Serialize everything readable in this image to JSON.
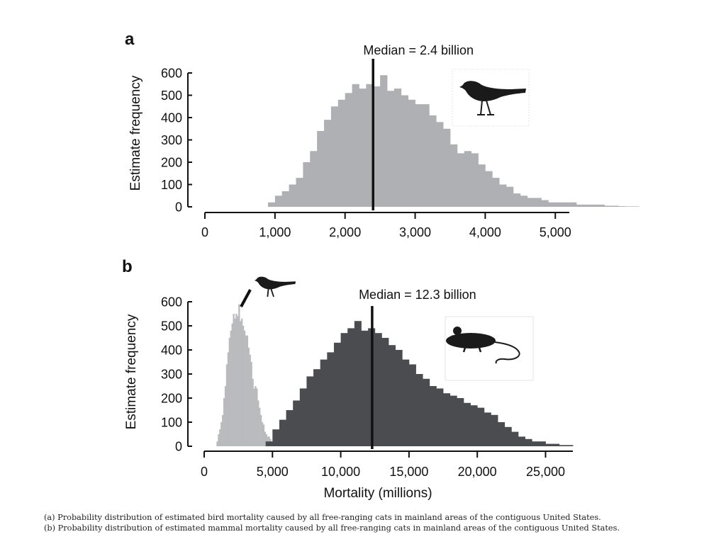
{
  "colors": {
    "bird_bars": "#aeb0b3",
    "bird_bars_b": "#b9bbbd",
    "mammal_bars": "#4a4c50",
    "median_line": "#111111",
    "axis": "#111111",
    "silhouette": "#1a1a1a"
  },
  "icons": {
    "bird": "bird-silhouette-icon",
    "mouse": "mouse-silhouette-icon"
  },
  "chart_data": [
    {
      "type": "bar",
      "panel_label": "a",
      "title": "",
      "xlabel": "",
      "ylabel": "Estimate frequency",
      "xlim": [
        0,
        5200
      ],
      "ylim": [
        0,
        600
      ],
      "x_ticks": [
        0,
        1000,
        2000,
        3000,
        4000,
        5000
      ],
      "x_tick_labels": [
        "0",
        "1,000",
        "2,000",
        "3,000",
        "4,000",
        "5,000"
      ],
      "y_ticks": [
        0,
        100,
        200,
        300,
        400,
        500,
        600
      ],
      "y_tick_labels": [
        "0",
        "100",
        "200",
        "300",
        "400",
        "500",
        "600"
      ],
      "median_value": 2400,
      "median_label": "Median = 2.4 billion",
      "bin_start": 900,
      "bin_width": 100,
      "series": [
        {
          "name": "Birds",
          "values": [
            20,
            50,
            70,
            100,
            130,
            200,
            250,
            340,
            390,
            450,
            480,
            510,
            550,
            530,
            550,
            540,
            590,
            520,
            530,
            500,
            480,
            460,
            460,
            410,
            380,
            350,
            280,
            240,
            250,
            240,
            190,
            160,
            130,
            100,
            90,
            60,
            50,
            40,
            40,
            30,
            20,
            20,
            20,
            20,
            10,
            10,
            10,
            10,
            5,
            5,
            3,
            2,
            2
          ]
        }
      ]
    },
    {
      "type": "bar",
      "panel_label": "b",
      "title": "",
      "xlabel": "Mortality (millions)",
      "ylabel": "Estimate frequency",
      "xlim": [
        0,
        27000
      ],
      "ylim": [
        0,
        600
      ],
      "x_ticks": [
        0,
        5000,
        10000,
        15000,
        20000,
        25000
      ],
      "x_tick_labels": [
        "0",
        "5,000",
        "10,000",
        "15,000",
        "20,000",
        "25,000"
      ],
      "y_ticks": [
        0,
        100,
        200,
        300,
        400,
        500,
        600
      ],
      "y_tick_labels": [
        "0",
        "100",
        "200",
        "300",
        "400",
        "500",
        "600"
      ],
      "median_value": 12300,
      "median_label": "Median = 12.3 billion",
      "series": [
        {
          "name": "Birds",
          "bin_start": 900,
          "bin_width": 100,
          "values": [
            20,
            50,
            70,
            100,
            130,
            200,
            250,
            340,
            390,
            450,
            480,
            510,
            550,
            530,
            550,
            540,
            590,
            520,
            530,
            500,
            480,
            460,
            460,
            410,
            380,
            350,
            280,
            240,
            250,
            240,
            190,
            160,
            130,
            100,
            90,
            60,
            50,
            40,
            40,
            30,
            20,
            20,
            20,
            20,
            10,
            10,
            10,
            10,
            5,
            5,
            3,
            2,
            2
          ]
        },
        {
          "name": "Mammals",
          "bin_start": 4500,
          "bin_width": 500,
          "values": [
            20,
            70,
            110,
            150,
            190,
            240,
            290,
            320,
            360,
            390,
            430,
            470,
            490,
            520,
            480,
            490,
            470,
            450,
            420,
            400,
            360,
            340,
            300,
            280,
            250,
            240,
            220,
            210,
            200,
            180,
            170,
            160,
            140,
            130,
            100,
            80,
            60,
            40,
            30,
            20,
            20,
            10,
            10,
            5,
            5
          ]
        }
      ]
    }
  ],
  "captions": [
    "(a) Probability distribution of estimated bird mortality caused by all free-ranging cats in mainland areas of the contiguous United States.",
    "(b) Probability distribution of estimated mammal mortality caused by all free-ranging cats in mainland areas of the contiguous United States."
  ]
}
